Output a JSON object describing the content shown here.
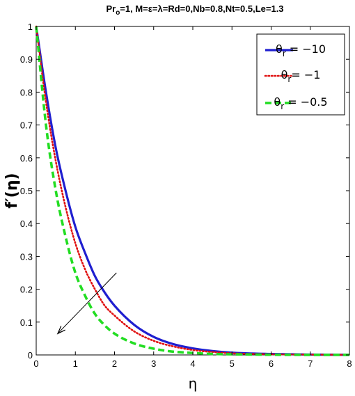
{
  "chart_data": {
    "type": "line",
    "title_parts": [
      "Pr",
      "o",
      "=1, M=ε=λ=Rd=0,Nb=0.8,Nt=0.5,Le=1.3"
    ],
    "xlabel": "η",
    "ylabel": "f′(η)",
    "xlim": [
      0,
      8
    ],
    "ylim": [
      0,
      1
    ],
    "xticks": [
      0,
      1,
      2,
      3,
      4,
      5,
      6,
      7,
      8
    ],
    "xtick_labels": [
      "0",
      "1",
      "2",
      "3",
      "4",
      "5",
      "6",
      "7",
      "8"
    ],
    "yticks": [
      0,
      0.1,
      0.2,
      0.3,
      0.4,
      0.5,
      0.6,
      0.7,
      0.8,
      0.9,
      1
    ],
    "ytick_labels": [
      "0",
      "0.1",
      "0.2",
      "0.3",
      "0.4",
      "0.5",
      "0.6",
      "0.7",
      "0.8",
      "0.9",
      "1"
    ],
    "grid": false,
    "legend_position": "top-right",
    "series": [
      {
        "name_parts": [
          "θ",
          "r",
          " = −10"
        ],
        "color": "#1f1fd0",
        "style": "solid",
        "x": [
          0,
          0.25,
          0.5,
          0.75,
          1,
          1.25,
          1.5,
          1.75,
          2,
          2.5,
          3,
          3.5,
          4,
          4.5,
          5,
          6,
          7,
          8
        ],
        "y": [
          1,
          0.8,
          0.63,
          0.5,
          0.39,
          0.31,
          0.24,
          0.19,
          0.15,
          0.092,
          0.055,
          0.033,
          0.02,
          0.012,
          0.007,
          0.003,
          0.001,
          0.0004
        ]
      },
      {
        "name_parts": [
          "θ",
          "r",
          "= −1"
        ],
        "color": "#e01010",
        "style": "dotted",
        "x": [
          0,
          0.25,
          0.5,
          0.75,
          1,
          1.25,
          1.5,
          1.75,
          2,
          2.5,
          3,
          3.5,
          4,
          4.5,
          5,
          6,
          7,
          8
        ],
        "y": [
          1,
          0.77,
          0.59,
          0.45,
          0.34,
          0.26,
          0.2,
          0.15,
          0.12,
          0.072,
          0.043,
          0.026,
          0.015,
          0.009,
          0.005,
          0.002,
          0.001,
          0.0003
        ]
      },
      {
        "name_parts": [
          "θ",
          "r",
          " = −0.5"
        ],
        "color": "#22dd22",
        "style": "dashed",
        "x": [
          0,
          0.25,
          0.5,
          0.75,
          1,
          1.25,
          1.5,
          1.75,
          2,
          2.5,
          3,
          3.5,
          4,
          4.5,
          5,
          6,
          7,
          8
        ],
        "y": [
          1,
          0.7,
          0.5,
          0.36,
          0.25,
          0.18,
          0.125,
          0.09,
          0.065,
          0.035,
          0.019,
          0.01,
          0.006,
          0.003,
          0.002,
          0.0006,
          0.0002,
          0.0001
        ]
      }
    ],
    "annotation_arrow": {
      "from": [
        2.05,
        0.25
      ],
      "to": [
        0.55,
        0.065
      ]
    }
  }
}
